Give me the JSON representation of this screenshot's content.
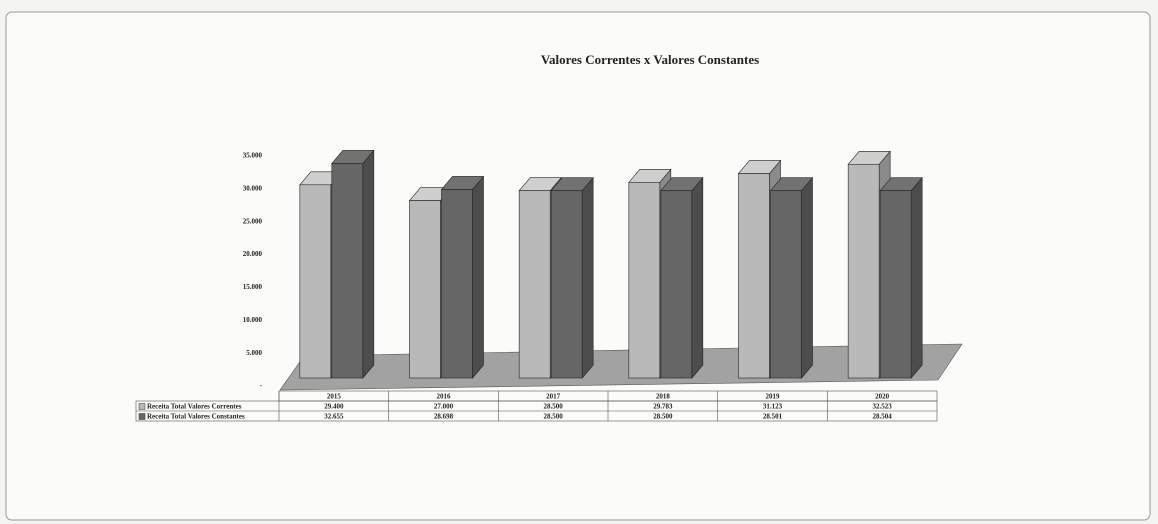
{
  "chart_data": {
    "type": "bar3d",
    "title": "Valores Correntes x Valores  Constantes",
    "categories": [
      "2015",
      "2016",
      "2017",
      "2018",
      "2019",
      "2020"
    ],
    "series": [
      {
        "name": "Receita Total Valores Correntes",
        "color": "#b9b9b9",
        "values": [
          29400,
          27000,
          28500,
          29783,
          31123,
          32523
        ],
        "value_labels": [
          "29.400",
          "27.000",
          "28.500",
          "29.783",
          "31.123",
          "32.523"
        ]
      },
      {
        "name": "Receita Total Valores Constantes",
        "color": "#666666",
        "values": [
          32655,
          28698,
          28500,
          28500,
          28501,
          28504
        ],
        "value_labels": [
          "32.655",
          "28.698",
          "28.500",
          "28.500",
          "28.501",
          "28.504"
        ]
      }
    ],
    "ylim": [
      0,
      35000
    ],
    "yticks": [
      {
        "value": 0,
        "label": "-"
      },
      {
        "value": 5000,
        "label": "5.000"
      },
      {
        "value": 10000,
        "label": "10.000"
      },
      {
        "value": 15000,
        "label": "15.000"
      },
      {
        "value": 20000,
        "label": "20.000"
      },
      {
        "value": 25000,
        "label": "25.000"
      },
      {
        "value": 30000,
        "label": "30.000"
      },
      {
        "value": 35000,
        "label": "35.000"
      }
    ],
    "grid": false
  }
}
